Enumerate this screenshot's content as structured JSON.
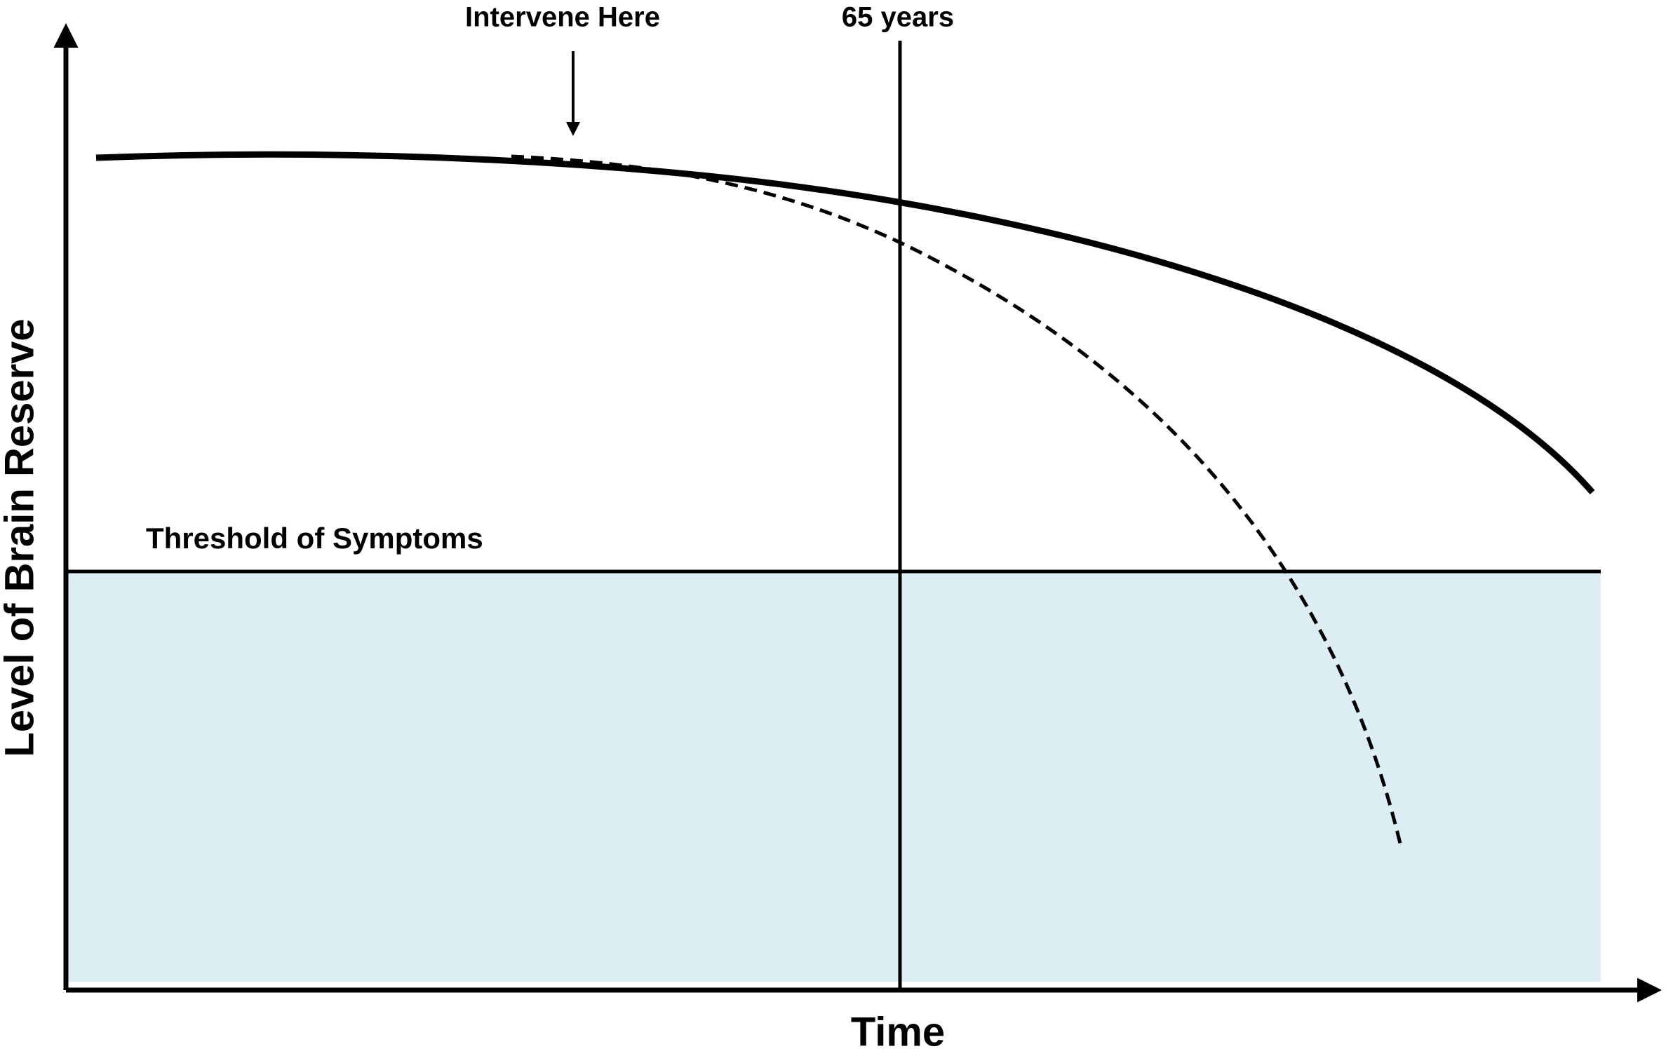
{
  "annotations": {
    "intervene": "Intervene Here",
    "age": "65 years",
    "threshold": "Threshold of Symptoms"
  },
  "axes": {
    "x_label": "Time",
    "y_label": "Level of Brain Reserve"
  }
}
